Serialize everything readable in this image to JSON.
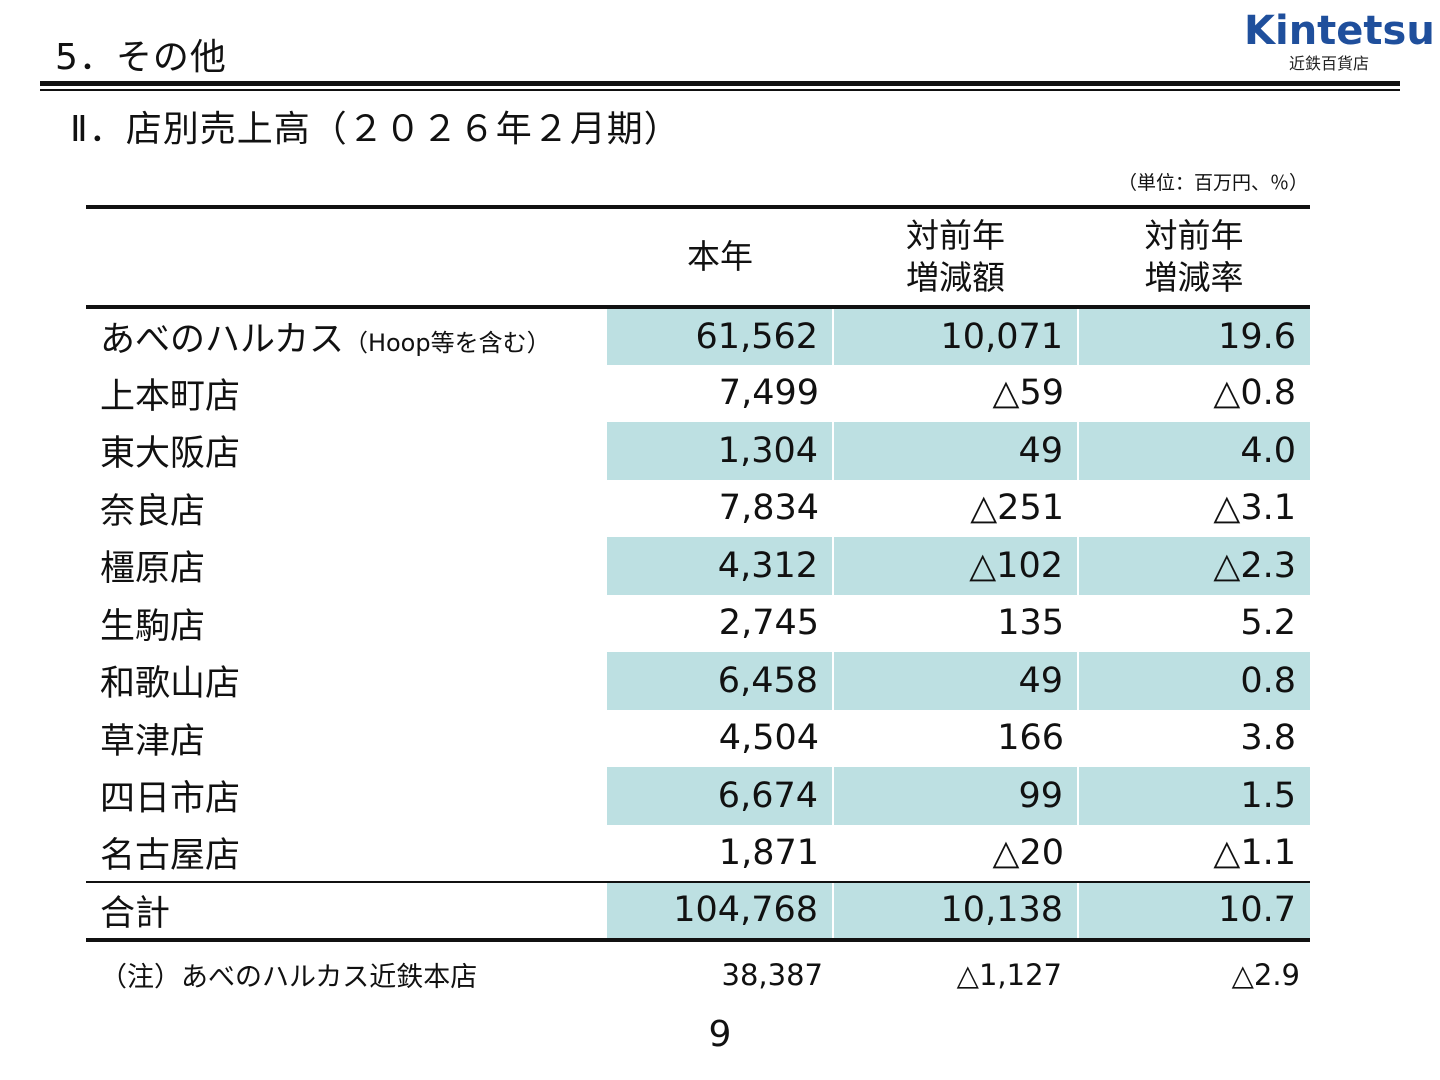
{
  "header": {
    "section_title": "5．その他",
    "logo_main": "Kintetsu",
    "logo_sub": "近鉄百貨店"
  },
  "sub_title": "Ⅱ．店別売上高（２０２６年２月期）",
  "unit": "（単位：百万円、％）",
  "table": {
    "columns": [
      "",
      "本年",
      "対前年\n増減額",
      "対前年\n増減率"
    ],
    "rows": [
      {
        "name": "あべのハルカス",
        "note": "（Hoop等を含む）",
        "current": "61,562",
        "diff": "10,071",
        "rate": "19.6"
      },
      {
        "name": "上本町店",
        "note": "",
        "current": "7,499",
        "diff": "△59",
        "rate": "△0.8"
      },
      {
        "name": "東大阪店",
        "note": "",
        "current": "1,304",
        "diff": "49",
        "rate": "4.0"
      },
      {
        "name": "奈良店",
        "note": "",
        "current": "7,834",
        "diff": "△251",
        "rate": "△3.1"
      },
      {
        "name": "橿原店",
        "note": "",
        "current": "4,312",
        "diff": "△102",
        "rate": "△2.3"
      },
      {
        "name": "生駒店",
        "note": "",
        "current": "2,745",
        "diff": "135",
        "rate": "5.2"
      },
      {
        "name": "和歌山店",
        "note": "",
        "current": "6,458",
        "diff": "49",
        "rate": "0.8"
      },
      {
        "name": "草津店",
        "note": "",
        "current": "4,504",
        "diff": "166",
        "rate": "3.8"
      },
      {
        "name": "四日市店",
        "note": "",
        "current": "6,674",
        "diff": "99",
        "rate": "1.5"
      },
      {
        "name": "名古屋店",
        "note": "",
        "current": "1,871",
        "diff": "△20",
        "rate": "△1.1"
      }
    ],
    "total": {
      "name": "合計",
      "current": "104,768",
      "diff": "10,138",
      "rate": "10.7"
    }
  },
  "footnote": {
    "label": "（注）あべのハルカス近鉄本店",
    "current": "38,387",
    "diff": "△1,127",
    "rate": "△2.9"
  },
  "page_number": "9"
}
